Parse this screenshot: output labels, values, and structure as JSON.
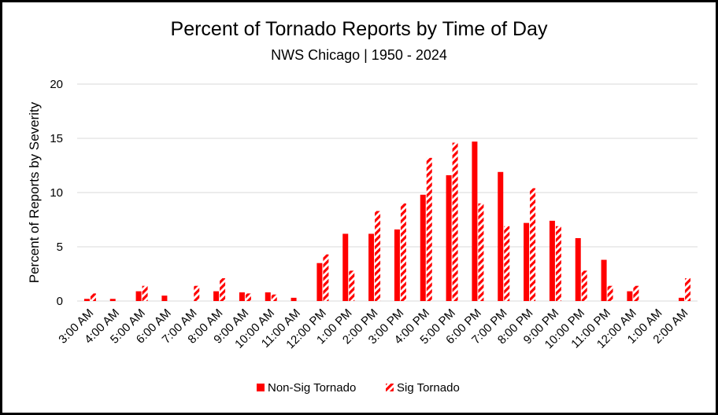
{
  "chart_data": {
    "type": "bar",
    "title": "Percent of Tornado Reports by Time of Day",
    "subtitle": "NWS Chicago | 1950 - 2024",
    "xlabel": "",
    "ylabel": "Percent of Reports by Severity",
    "ylim": [
      0,
      20
    ],
    "yticks": [
      0,
      5,
      10,
      15,
      20
    ],
    "grid": true,
    "legend_position": "bottom",
    "categories": [
      "3:00 AM",
      "4:00 AM",
      "5:00 AM",
      "6:00 AM",
      "7:00 AM",
      "8:00 AM",
      "9:00 AM",
      "10:00 AM",
      "11:00 AM",
      "12:00 PM",
      "1:00 PM",
      "2:00 PM",
      "3:00 PM",
      "4:00 PM",
      "5:00 PM",
      "6:00 PM",
      "7:00 PM",
      "8:00 PM",
      "9:00 PM",
      "10:00 PM",
      "11:00 PM",
      "12:00 AM",
      "1:00 AM",
      "2:00 AM"
    ],
    "series": [
      {
        "name": "Non-Sig Tornado",
        "color": "#ff0000",
        "pattern": "solid",
        "values": [
          0.2,
          0.2,
          0.9,
          0.5,
          0.0,
          0.9,
          0.8,
          0.8,
          0.3,
          3.5,
          6.2,
          6.2,
          6.6,
          9.8,
          11.6,
          14.7,
          11.9,
          7.2,
          7.4,
          5.8,
          3.8,
          0.9,
          0.0,
          0.3
        ]
      },
      {
        "name": "Sig Tornado",
        "color": "#ff0000",
        "pattern": "diagonal-hatch",
        "values": [
          0.7,
          0.0,
          1.4,
          0.0,
          1.4,
          2.1,
          0.7,
          0.6,
          0.0,
          4.3,
          2.8,
          8.3,
          9.0,
          13.2,
          14.6,
          9.0,
          6.9,
          10.4,
          6.9,
          2.8,
          1.4,
          1.4,
          0.0,
          2.1
        ]
      }
    ]
  }
}
